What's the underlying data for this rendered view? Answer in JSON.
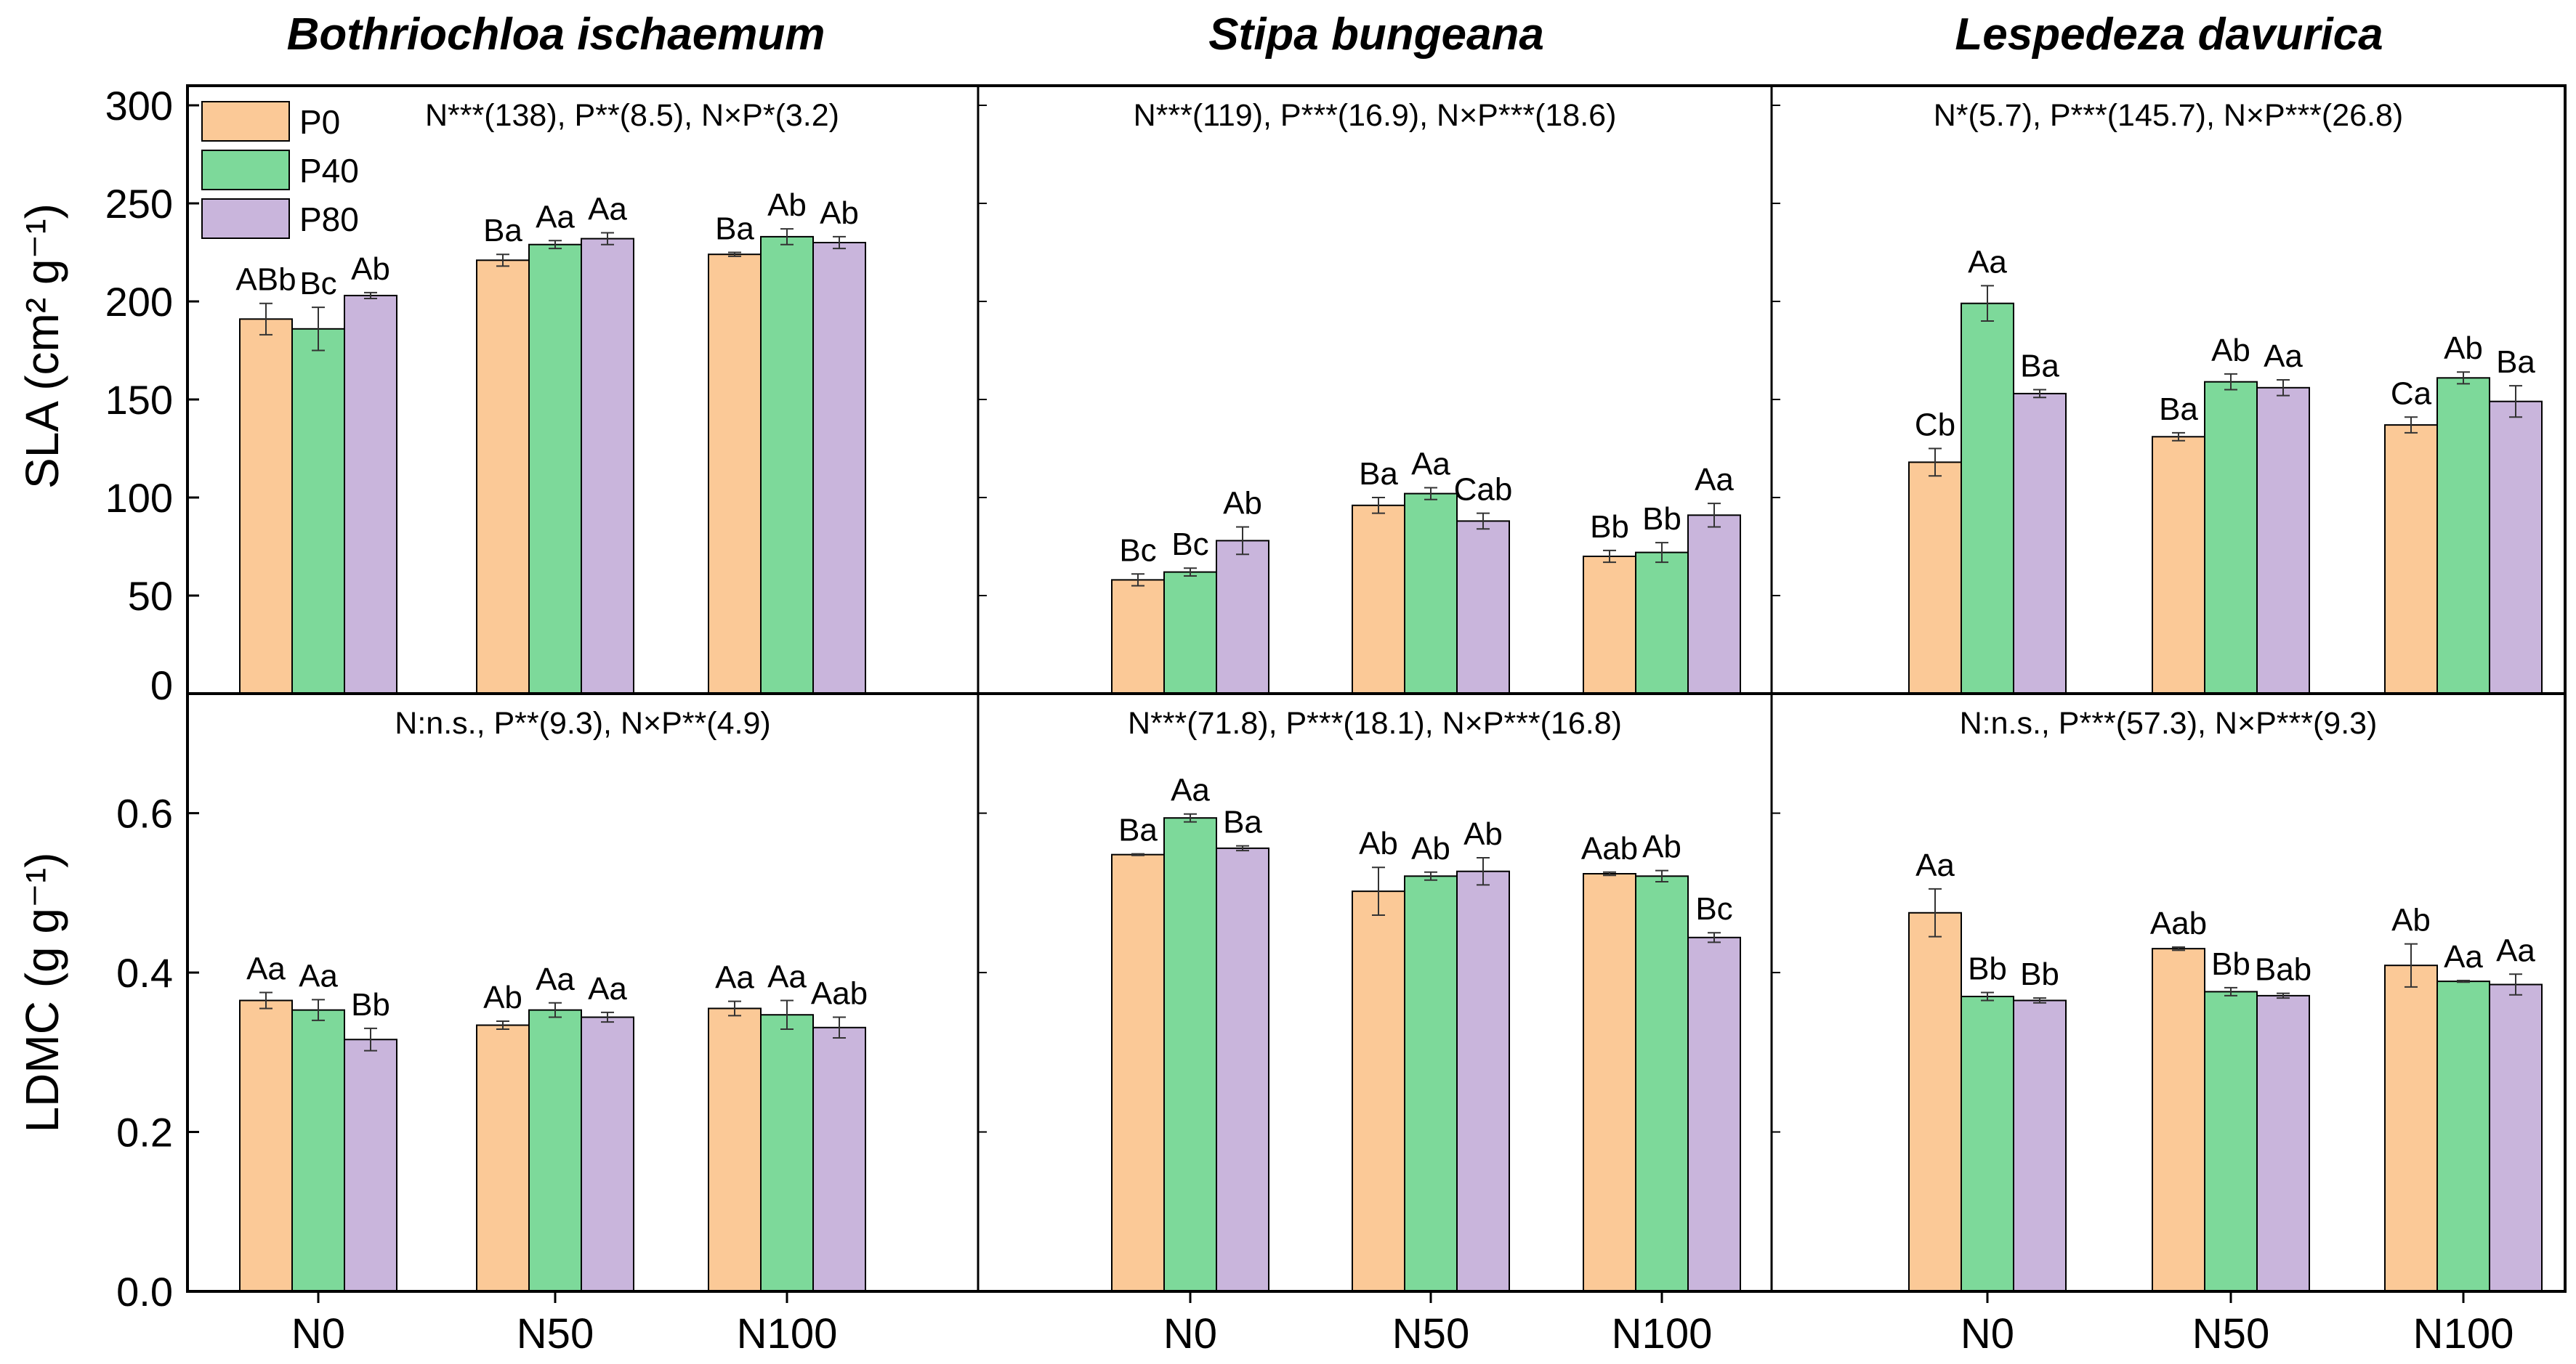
{
  "chart_data": {
    "type": "bar",
    "panel_titles": [
      "Bothriochloa ischaemum",
      "Stipa bungeana",
      "Lespedeza davurica"
    ],
    "categories": [
      "N0",
      "N50",
      "N100"
    ],
    "series_names": [
      "P0",
      "P40",
      "P80"
    ],
    "colors": {
      "P0": "#FBC997",
      "P40": "#7DD99A",
      "P80": "#C9B5DC"
    },
    "legend_position": "top-left",
    "rows": [
      {
        "key": "sla",
        "ylabel": "SLA (cm² g⁻¹)",
        "ylim": [
          0,
          310
        ],
        "yticks": [
          0,
          50,
          100,
          150,
          200,
          250,
          300
        ],
        "ytick_labels": [
          "0",
          "50",
          "100",
          "150",
          "200",
          "250",
          "300"
        ],
        "panels": [
          {
            "stats": "N***(138), P**(8.5), N×P*(3.2)",
            "values": [
              [
                191,
                186,
                203
              ],
              [
                221,
                229,
                232
              ],
              [
                224,
                233,
                230
              ]
            ],
            "errors": [
              [
                8,
                11,
                1.5
              ],
              [
                3,
                2,
                3
              ],
              [
                1,
                4,
                3
              ]
            ],
            "letters": [
              [
                "ABb",
                "Bc",
                "Ab"
              ],
              [
                "Ba",
                "Aa",
                "Aa"
              ],
              [
                "Ba",
                "Ab",
                "Ab"
              ]
            ]
          },
          {
            "stats": "N***(119), P***(16.9), N×P***(18.6)",
            "values": [
              [
                58,
                62,
                78
              ],
              [
                96,
                102,
                88
              ],
              [
                70,
                72,
                91
              ]
            ],
            "errors": [
              [
                3,
                2,
                7
              ],
              [
                4,
                3,
                4
              ],
              [
                3,
                5,
                6
              ]
            ],
            "letters": [
              [
                "Bc",
                "Bc",
                "Ab"
              ],
              [
                "Ba",
                "Aa",
                "Cab"
              ],
              [
                "Bb",
                "Bb",
                "Aa"
              ]
            ]
          },
          {
            "stats": "N*(5.7), P***(145.7), N×P***(26.8)",
            "values": [
              [
                118,
                199,
                153
              ],
              [
                131,
                159,
                156
              ],
              [
                137,
                161,
                149
              ]
            ],
            "errors": [
              [
                7,
                9,
                2
              ],
              [
                2,
                4,
                4
              ],
              [
                4,
                3,
                8
              ]
            ],
            "letters": [
              [
                "Cb",
                "Aa",
                "Ba"
              ],
              [
                "Ba",
                "Ab",
                "Aa"
              ],
              [
                "Ca",
                "Ab",
                "Ba"
              ]
            ]
          }
        ]
      },
      {
        "key": "ldmc",
        "ylabel": "LDMC (g g⁻¹)",
        "ylim": [
          0,
          0.75
        ],
        "yticks": [
          0,
          0.2,
          0.4,
          0.6
        ],
        "ytick_labels": [
          "0.0",
          "0.2",
          "0.4",
          "0.6"
        ],
        "panels": [
          {
            "stats": "N:n.s., P**(9.3), N×P**(4.9)",
            "values": [
              [
                0.365,
                0.353,
                0.316
              ],
              [
                0.334,
                0.353,
                0.344
              ],
              [
                0.355,
                0.347,
                0.331
              ]
            ],
            "errors": [
              [
                0.01,
                0.013,
                0.014
              ],
              [
                0.005,
                0.009,
                0.006
              ],
              [
                0.009,
                0.018,
                0.013
              ]
            ],
            "letters": [
              [
                "Aa",
                "Aa",
                "Bb"
              ],
              [
                "Ab",
                "Aa",
                "Aa"
              ],
              [
                "Aa",
                "Aa",
                "Aab"
              ]
            ]
          },
          {
            "stats": "N***(71.8), P***(18.1), N×P***(16.8)",
            "values": [
              [
                0.548,
                0.594,
                0.556
              ],
              [
                0.502,
                0.521,
                0.527
              ],
              [
                0.524,
                0.521,
                0.444
              ]
            ],
            "errors": [
              [
                0.001,
                0.005,
                0.003
              ],
              [
                0.03,
                0.005,
                0.017
              ],
              [
                0.002,
                0.007,
                0.006
              ]
            ],
            "letters": [
              [
                "Ba",
                "Aa",
                "Ba"
              ],
              [
                "Ab",
                "Ab",
                "Ab"
              ],
              [
                "Aab",
                "Ab",
                "Bc"
              ]
            ]
          },
          {
            "stats": "N:n.s., P***(57.3), N×P***(9.3)",
            "values": [
              [
                0.475,
                0.37,
                0.365
              ],
              [
                0.43,
                0.376,
                0.371
              ],
              [
                0.409,
                0.389,
                0.385
              ]
            ],
            "errors": [
              [
                0.03,
                0.005,
                0.003
              ],
              [
                0.002,
                0.005,
                0.003
              ],
              [
                0.027,
                0.001,
                0.013
              ]
            ],
            "letters": [
              [
                "Aa",
                "Bb",
                "Bb"
              ],
              [
                "Aab",
                "Bb",
                "Bab"
              ],
              [
                "Ab",
                "Aa",
                "Aa"
              ]
            ]
          }
        ]
      }
    ]
  }
}
